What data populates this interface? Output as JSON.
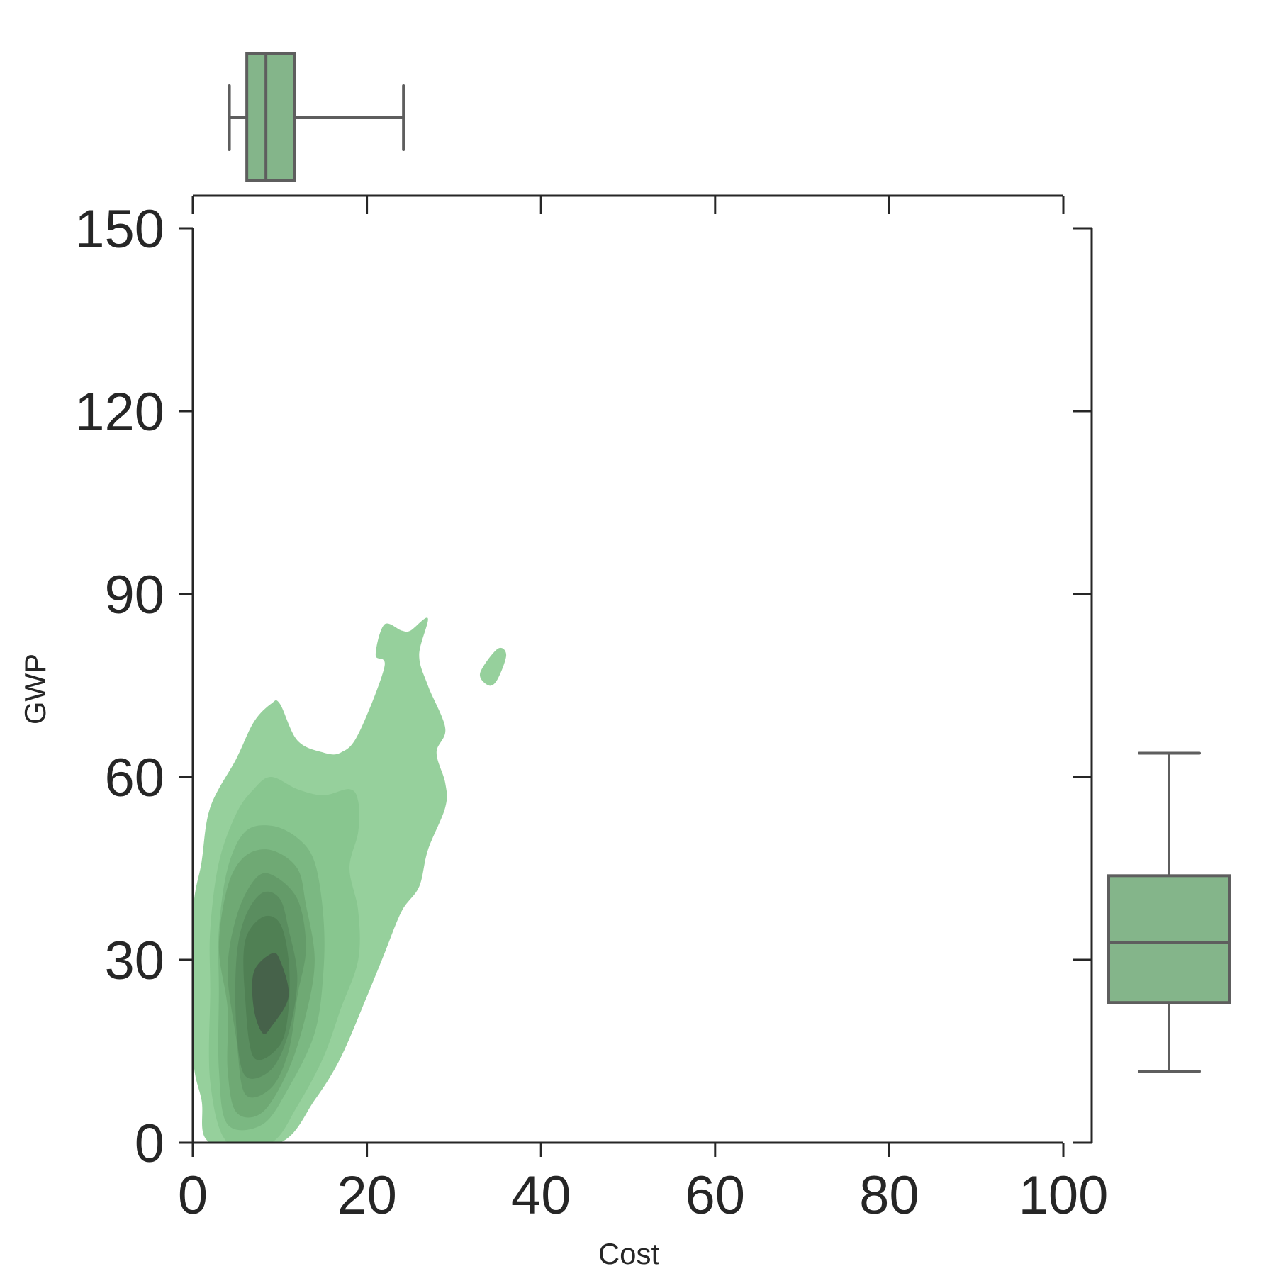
{
  "chart_data": {
    "type": "joint-kde-with-marginal-boxplots",
    "xlabel": "Cost",
    "ylabel": "GWP",
    "xlim": [
      0,
      100
    ],
    "ylim": [
      0,
      150
    ],
    "xticks": [
      0,
      20,
      40,
      60,
      80,
      100
    ],
    "yticks": [
      0,
      30,
      60,
      90,
      120,
      150
    ],
    "grid": false,
    "colors": {
      "kde_levels": [
        "#96d09c",
        "#88c68f",
        "#7bb882",
        "#6fa974",
        "#649b69",
        "#5a8d5f",
        "#508054",
        "#46624a"
      ],
      "box_fill": "#84b58a",
      "box_edge": "#5e5e5e",
      "axis": "#262626"
    },
    "kde_contours": [
      {
        "level": 1,
        "points": [
          [
            2,
            0
          ],
          [
            10,
            0
          ],
          [
            14,
            7
          ],
          [
            17,
            14
          ],
          [
            20,
            24
          ],
          [
            22,
            31
          ],
          [
            24,
            38
          ],
          [
            26,
            42
          ],
          [
            27,
            48
          ],
          [
            29,
            55
          ],
          [
            29,
            59
          ],
          [
            28,
            64
          ],
          [
            29,
            68
          ],
          [
            27,
            75
          ],
          [
            26,
            80
          ],
          [
            27,
            86
          ],
          [
            25,
            84
          ],
          [
            24,
            84
          ],
          [
            22,
            85
          ],
          [
            21,
            80
          ],
          [
            22,
            78
          ],
          [
            19,
            67
          ],
          [
            17,
            64
          ],
          [
            15,
            64
          ],
          [
            12,
            66
          ],
          [
            10,
            72
          ],
          [
            9,
            72
          ],
          [
            7,
            69
          ],
          [
            5,
            63
          ],
          [
            2,
            55
          ],
          [
            1,
            46
          ],
          [
            0,
            37
          ],
          [
            0,
            15
          ],
          [
            1,
            7
          ]
        ]
      },
      {
        "level": 1,
        "points": [
          [
            34,
            75
          ],
          [
            35,
            76
          ],
          [
            36,
            80
          ],
          [
            35,
            81
          ],
          [
            33,
            77
          ]
        ]
      },
      {
        "level": 2,
        "points": [
          [
            4,
            0
          ],
          [
            9,
            0
          ],
          [
            12,
            6
          ],
          [
            15,
            14
          ],
          [
            17,
            22
          ],
          [
            19,
            30
          ],
          [
            19,
            38
          ],
          [
            18,
            45
          ],
          [
            19,
            51
          ],
          [
            19,
            56
          ],
          [
            18,
            58
          ],
          [
            15,
            57
          ],
          [
            12,
            58
          ],
          [
            9,
            60
          ],
          [
            7,
            58
          ],
          [
            5,
            54
          ],
          [
            3,
            46
          ],
          [
            2,
            35
          ],
          [
            2,
            25
          ],
          [
            2,
            10
          ]
        ]
      },
      {
        "level": 3,
        "points": [
          [
            4,
            3
          ],
          [
            8,
            3
          ],
          [
            11,
            9
          ],
          [
            14,
            18
          ],
          [
            15,
            28
          ],
          [
            15,
            37
          ],
          [
            14,
            46
          ],
          [
            12,
            50
          ],
          [
            9,
            52
          ],
          [
            6,
            51
          ],
          [
            4,
            45
          ],
          [
            3,
            35
          ],
          [
            3,
            25
          ],
          [
            3,
            12
          ]
        ]
      },
      {
        "level": 4,
        "points": [
          [
            5,
            5
          ],
          [
            8,
            5
          ],
          [
            11,
            12
          ],
          [
            13,
            21
          ],
          [
            14,
            30
          ],
          [
            13,
            39
          ],
          [
            12,
            45
          ],
          [
            9,
            48
          ],
          [
            6,
            47
          ],
          [
            4,
            42
          ],
          [
            3,
            32
          ],
          [
            4,
            22
          ],
          [
            4,
            12
          ]
        ]
      },
      {
        "level": 5,
        "points": [
          [
            6,
            8
          ],
          [
            9,
            9
          ],
          [
            11,
            15
          ],
          [
            12,
            24
          ],
          [
            13,
            32
          ],
          [
            12,
            40
          ],
          [
            9,
            44
          ],
          [
            7,
            43
          ],
          [
            5,
            37
          ],
          [
            4,
            28
          ],
          [
            5,
            17
          ]
        ]
      },
      {
        "level": 6,
        "points": [
          [
            6,
            11
          ],
          [
            9,
            12
          ],
          [
            11,
            18
          ],
          [
            12,
            27
          ],
          [
            11,
            35
          ],
          [
            10,
            40
          ],
          [
            8,
            41
          ],
          [
            6,
            37
          ],
          [
            5,
            30
          ],
          [
            5,
            19
          ]
        ]
      },
      {
        "level": 7,
        "points": [
          [
            7,
            14
          ],
          [
            10,
            16
          ],
          [
            11,
            22
          ],
          [
            11,
            30
          ],
          [
            10,
            36
          ],
          [
            8,
            37
          ],
          [
            6,
            33
          ],
          [
            6,
            24
          ]
        ]
      },
      {
        "level": 8,
        "points": [
          [
            8,
            18
          ],
          [
            9,
            19
          ],
          [
            11,
            24
          ],
          [
            10,
            30
          ],
          [
            9,
            31
          ],
          [
            7,
            28
          ],
          [
            7,
            22
          ]
        ]
      }
    ],
    "marginal_x_boxplot": {
      "whisker_low": 4.2,
      "q1": 6.2,
      "median": 8.4,
      "q3": 11.7,
      "whisker_high": 24.2
    },
    "marginal_y_boxplot": {
      "whisker_low": 11.7,
      "q1": 23.0,
      "median": 32.8,
      "q3": 43.8,
      "whisker_high": 63.9
    }
  }
}
